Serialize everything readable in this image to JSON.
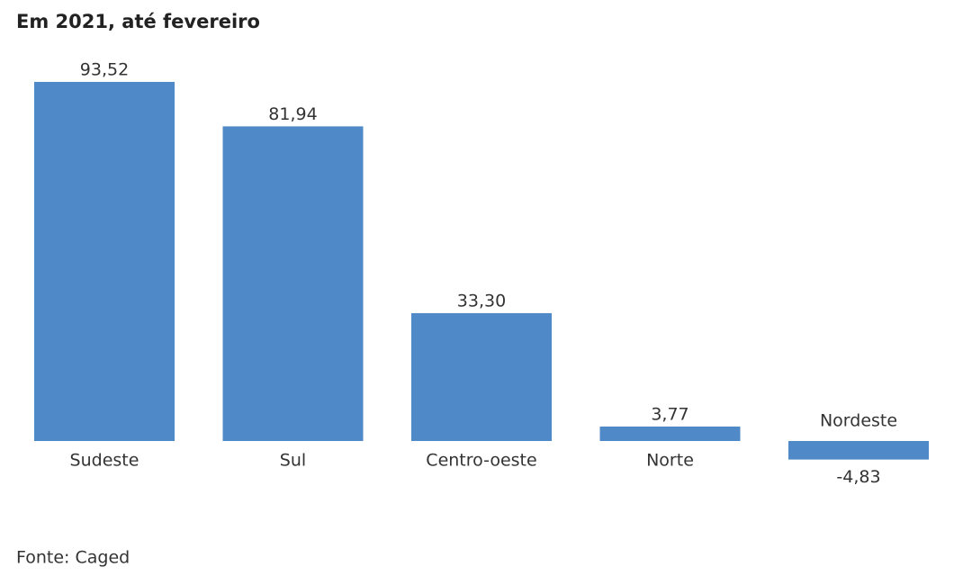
{
  "chart_data": {
    "type": "bar",
    "title": "Em 2021, até fevereiro",
    "categories": [
      "Sudeste",
      "Sul",
      "Centro-oeste",
      "Norte",
      "Nordeste"
    ],
    "values": [
      93.52,
      81.94,
      33.3,
      3.77,
      -4.83
    ],
    "value_labels": [
      "93,52",
      "81,94",
      "33,30",
      "3,77",
      "-4,83"
    ],
    "color": "#4f89c7",
    "source": "Fonte: Caged"
  }
}
